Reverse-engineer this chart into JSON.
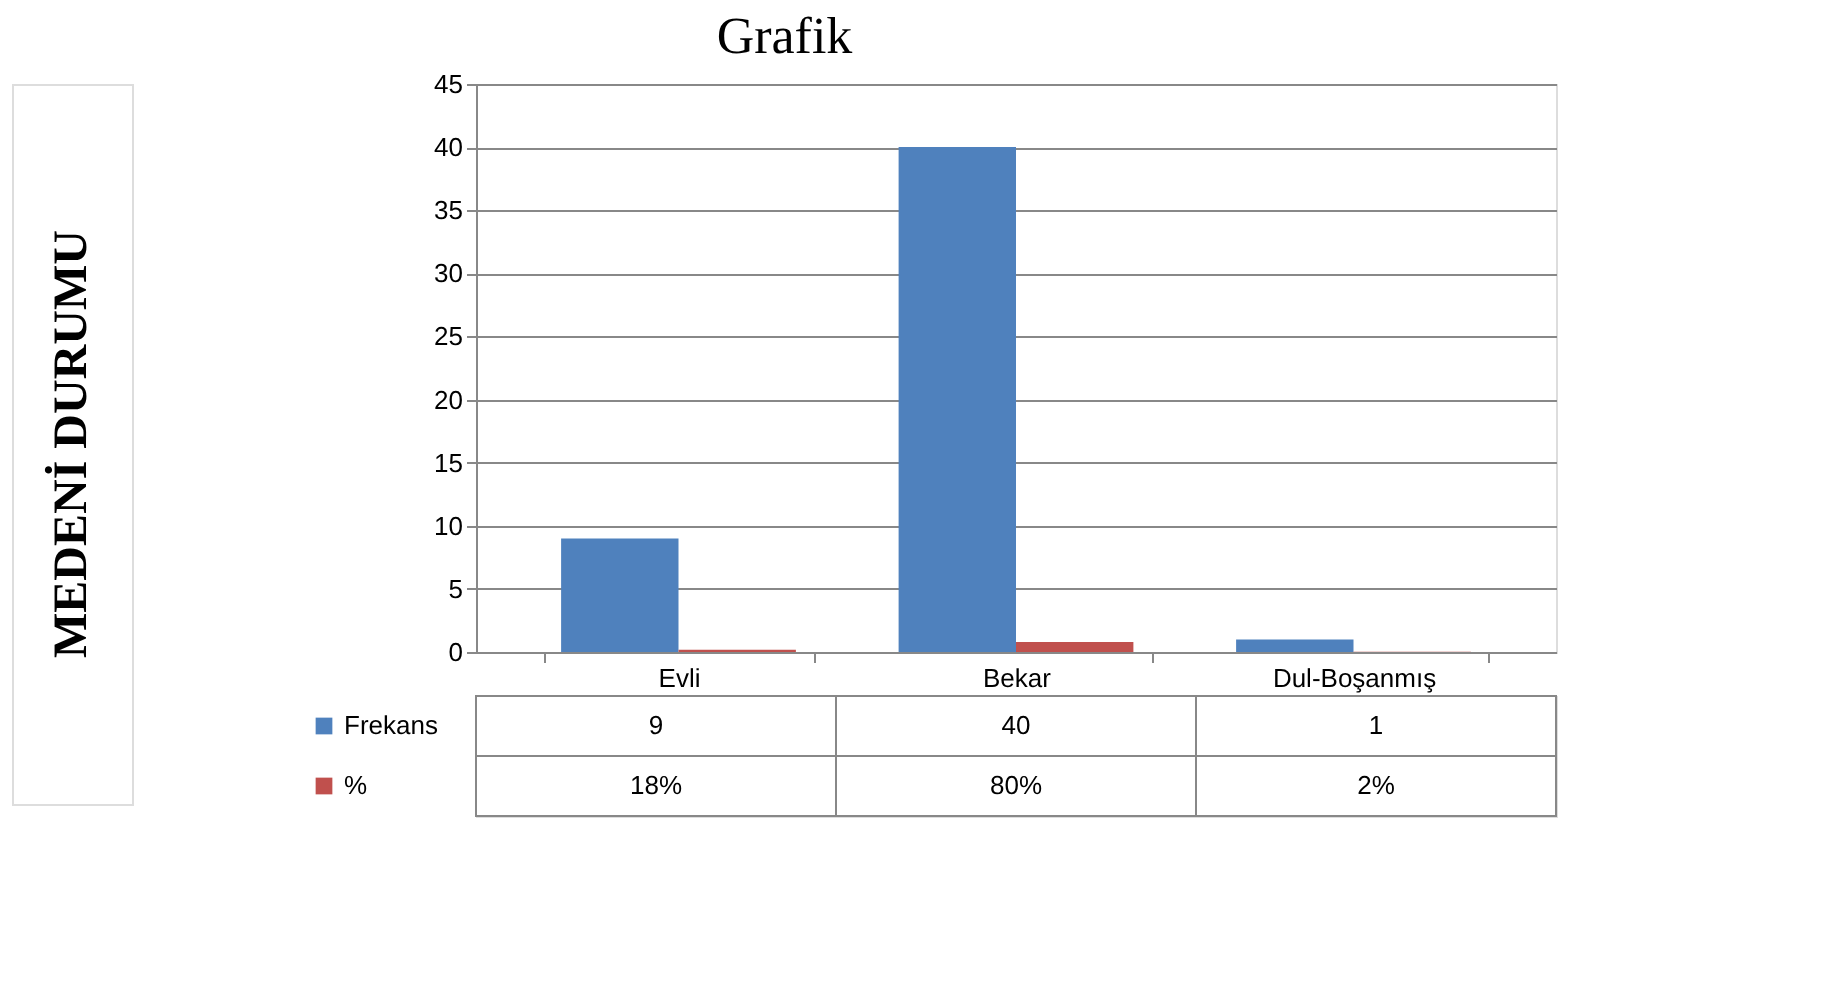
{
  "chart_data": {
    "type": "bar",
    "title": "Grafik",
    "annotations": [
      "MEDENİ DURUMU"
    ],
    "categories": [
      "Evli",
      "Bekar",
      "Dul-Boşanmış"
    ],
    "series": [
      {
        "name": "Frekans",
        "color": "#4f81bd",
        "values": [
          9,
          40,
          1
        ],
        "value_labels": [
          "9",
          "40",
          "1"
        ]
      },
      {
        "name": "%",
        "color": "#c0504d",
        "values": [
          0.18,
          0.8,
          0.02
        ],
        "value_labels": [
          "18%",
          "80%",
          "2%"
        ]
      }
    ],
    "ylim": [
      0,
      45
    ],
    "yticks": [
      0,
      5,
      10,
      15,
      20,
      25,
      30,
      35,
      40,
      45
    ],
    "grid": "y",
    "legend": "bottom"
  }
}
